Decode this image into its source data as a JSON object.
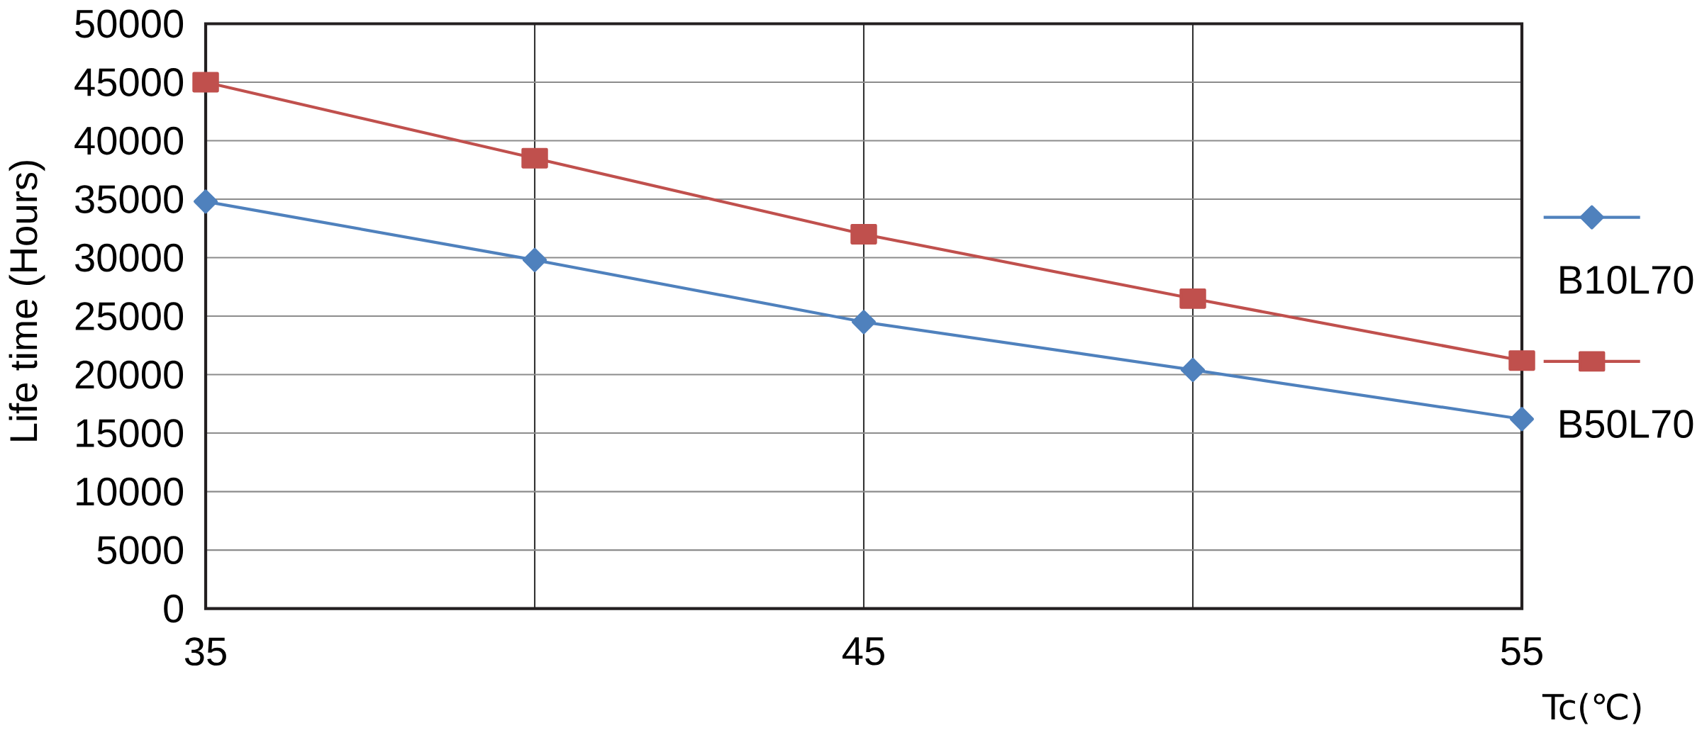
{
  "chart_data": {
    "type": "line",
    "xlabel": "Tc(℃)",
    "ylabel": "Life time (Hours)",
    "x": [
      35,
      40,
      45,
      50,
      55
    ],
    "series": [
      {
        "name": "B10L70",
        "color": "#4f81bd",
        "marker": "diamond",
        "values": [
          34800,
          29800,
          24500,
          20400,
          16200
        ]
      },
      {
        "name": "B50L70",
        "color": "#c0504d",
        "marker": "square",
        "values": [
          45000,
          38500,
          32000,
          26500,
          21200
        ]
      }
    ],
    "xlim": [
      35,
      55
    ],
    "xticks": [
      35,
      {
        "value": 40,
        "label": null
      },
      45,
      {
        "value": 50,
        "label": null
      },
      55
    ],
    "ylim": [
      0,
      50000
    ],
    "yticks": [
      0,
      5000,
      10000,
      15000,
      20000,
      25000,
      30000,
      35000,
      40000,
      45000,
      50000
    ],
    "grid": true,
    "legend": "right",
    "line_style": "solid"
  }
}
